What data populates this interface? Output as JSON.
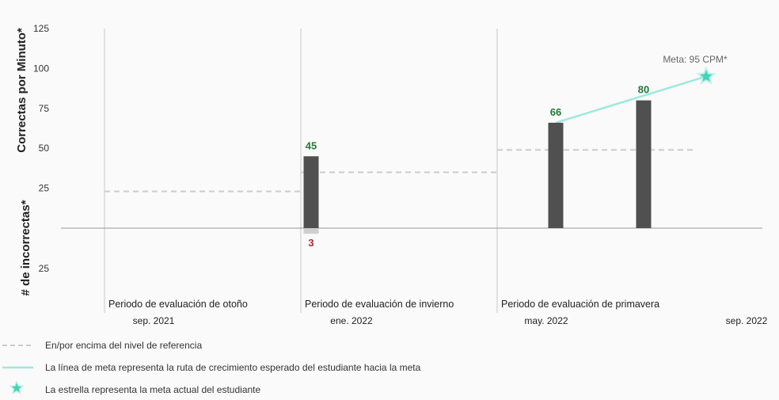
{
  "chart_data": {
    "type": "bar",
    "ylabel_top": "Correctas por Minuto*",
    "ylabel_bottom": "# de incorrectas*",
    "ylim_top": [
      0,
      125
    ],
    "yticks_top": [
      "25",
      "50",
      "75",
      "100",
      "125"
    ],
    "ylim_bottom": [
      0,
      40
    ],
    "yticks_bottom": [
      "25"
    ],
    "periods": [
      {
        "label": "Periodo de evaluación de otoño",
        "date": "sep. 2021",
        "benchmark": 23
      },
      {
        "label": "Periodo de evaluación de invierno",
        "date": "ene. 2022",
        "benchmark": 35
      },
      {
        "label": "Periodo de evaluación de primavera",
        "date": "may. 2022",
        "benchmark": 49
      }
    ],
    "end_date": "sep. 2022",
    "bars": [
      {
        "correct": 45,
        "correct_label": "45",
        "incorrect": 3,
        "incorrect_label": "3"
      },
      {
        "correct": 66,
        "correct_label": "66"
      },
      {
        "correct": 80,
        "correct_label": "80"
      }
    ],
    "goal": {
      "value": 95,
      "label": "Meta: 95 CPM*",
      "line_start": 66
    },
    "colors": {
      "bar": "#505050",
      "incorrect_bar": "#cfcfcf",
      "correct_text": "#1e7b36",
      "incorrect_text": "#b0293a",
      "benchmark": "#cccccc",
      "goal_line": "#9ee9dc",
      "star": "#3fd6b6",
      "grid": "#c8c8c8",
      "axis": "#999999"
    },
    "legend": [
      {
        "icon": "dashed-line",
        "text": "En/por encima del nivel de referencia"
      },
      {
        "icon": "goal-line",
        "text": "La línea de meta representa la ruta de crecimiento esperado del estudiante hacia la meta"
      },
      {
        "icon": "star-icon",
        "text": "La estrella representa la meta actual del estudiante"
      }
    ]
  }
}
